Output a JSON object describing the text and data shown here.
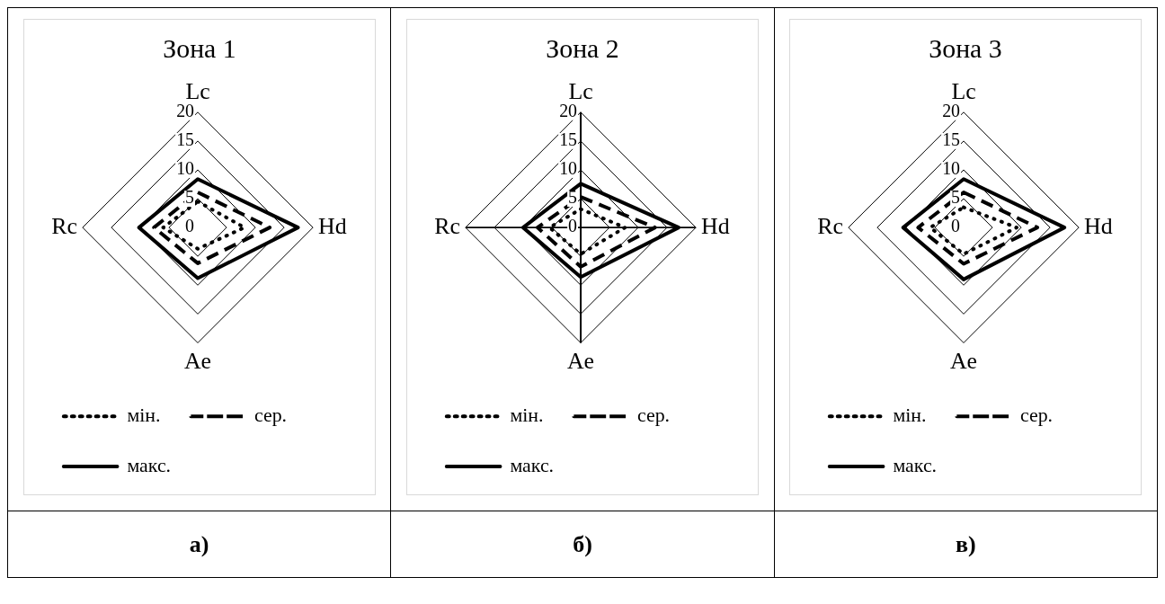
{
  "chart_data": [
    {
      "type": "radar",
      "title": "Зона 1",
      "categories": [
        "Lc",
        "Hd",
        "Ae",
        "Rc"
      ],
      "ylim": [
        0,
        20
      ],
      "yticks": [
        0,
        5,
        10,
        15,
        20
      ],
      "grid": "y",
      "legend": "bottom",
      "marker": "none",
      "annotations": [
        "а)"
      ],
      "series": [
        {
          "name": "мін.",
          "color": "#000000",
          "line_style": "dotted",
          "values": [
            4.5,
            8.1,
            3.7,
            6
          ]
        },
        {
          "name": "сер.",
          "color": "#000000",
          "line_style": "dashed",
          "values": [
            6.1,
            12.5,
            6.2,
            7.6
          ]
        },
        {
          "name": "макс.",
          "color": "#000000",
          "line_style": "solid",
          "values": [
            8.4,
            17.4,
            8.8,
            10.2
          ]
        }
      ]
    },
    {
      "type": "radar",
      "title": "Зона 2",
      "categories": [
        "Lc",
        "Hd",
        "Ae",
        "Rc"
      ],
      "ylim": [
        0,
        20
      ],
      "yticks": [
        0,
        5,
        10,
        15,
        20
      ],
      "grid": true,
      "legend": "bottom",
      "marker": "none",
      "annotations": [
        "б)"
      ],
      "series": [
        {
          "name": "мін.",
          "color": "#000000",
          "line_style": "dotted",
          "values": [
            3.2,
            7.7,
            4.6,
            5.4
          ]
        },
        {
          "name": "сер.",
          "color": "#000000",
          "line_style": "dashed",
          "values": [
            5.3,
            12.9,
            6.8,
            7.5
          ]
        },
        {
          "name": "макс.",
          "color": "#000000",
          "line_style": "solid",
          "values": [
            7.6,
            17,
            8.6,
            10
          ]
        }
      ]
    },
    {
      "type": "radar",
      "title": "Зона 3",
      "categories": [
        "Lc",
        "Hd",
        "Ae",
        "Rc"
      ],
      "ylim": [
        0,
        20
      ],
      "yticks": [
        0,
        5,
        10,
        15,
        20
      ],
      "grid": "y",
      "legend": "bottom",
      "marker": "none",
      "annotations": [
        "в)"
      ],
      "series": [
        {
          "name": "мін.",
          "color": "#000000",
          "line_style": "dotted",
          "values": [
            3.5,
            9.2,
            4.6,
            5.8
          ]
        },
        {
          "name": "сер.",
          "color": "#000000",
          "line_style": "dashed",
          "values": [
            6.1,
            12.8,
            6.3,
            7.9
          ]
        },
        {
          "name": "макс.",
          "color": "#000000",
          "line_style": "solid",
          "values": [
            8.4,
            17.5,
            9,
            10.5
          ]
        }
      ]
    }
  ]
}
